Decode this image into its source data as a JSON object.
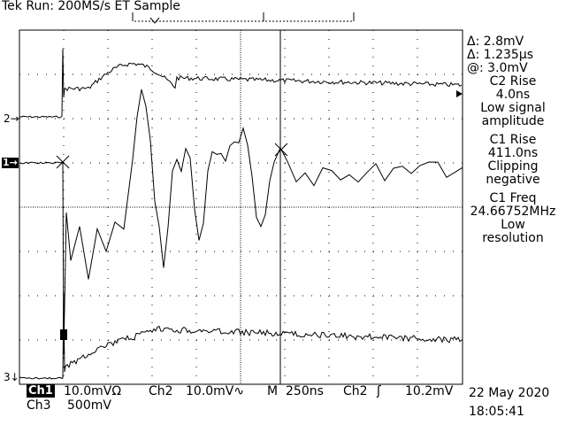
{
  "header": {
    "status": "Tek Run: 200MS/s ET Sample"
  },
  "channel_markers": {
    "ch2": "2→",
    "ch1": "1→",
    "ch3": "3↓"
  },
  "cursor_readout": {
    "delta_v": "Δ: 2.8mV",
    "delta_t": "Δ: 1.235µs",
    "at_v": "@: 3.0mV"
  },
  "measurements": [
    {
      "title": "C2 Rise",
      "value": "4.0ns",
      "note1": "Low signal",
      "note2": "amplitude"
    },
    {
      "title": "C1 Rise",
      "value": "411.0ns",
      "note1": "Clipping",
      "note2": "negative"
    },
    {
      "title": "C1 Freq",
      "value": "24.66752MHz",
      "note1": "Low",
      "note2": "resolution"
    }
  ],
  "bottom": {
    "ch1_tag": "Ch1",
    "ch1_scale": "10.0mVΩ",
    "ch2_label": "Ch2",
    "ch2_scale": "10.0mV∿",
    "timebase_label": "M",
    "timebase_value": "250ns",
    "trigger_channel": "Ch2",
    "trigger_slope_icon": "ʃ",
    "trigger_level": "10.2mV",
    "ch3_label": "Ch3",
    "ch3_scale": "500mV",
    "date": "22 May 2020",
    "time": "18:05:41"
  },
  "colors": {
    "background": "#ffffff",
    "trace": "#000000",
    "graticule": "#000000"
  }
}
